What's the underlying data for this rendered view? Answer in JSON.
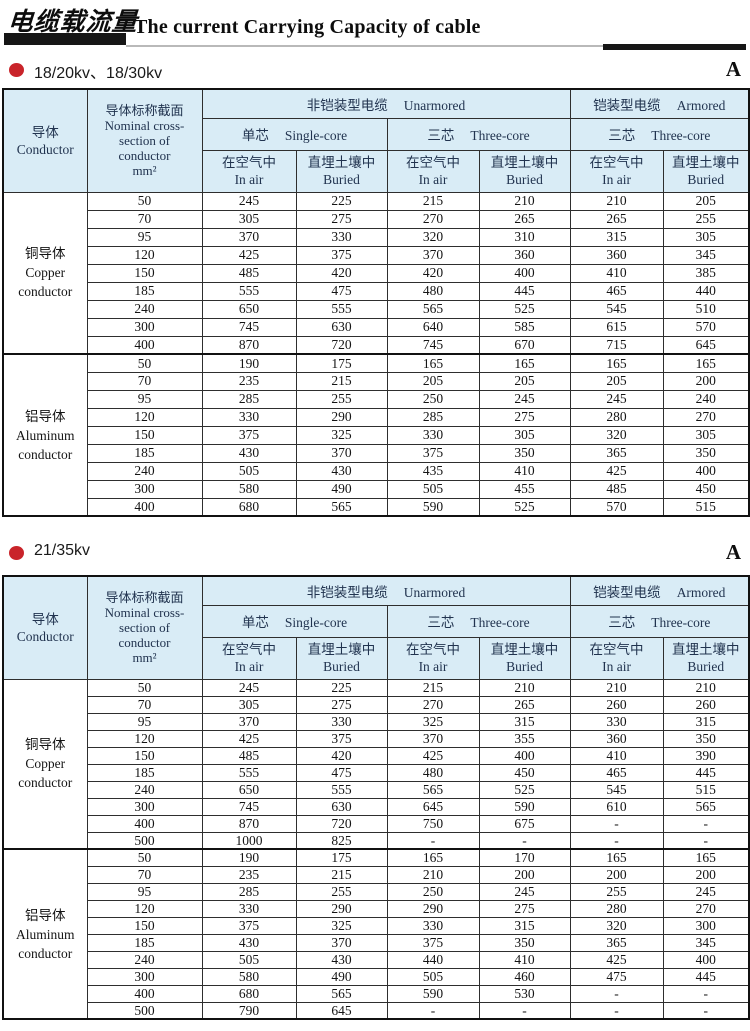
{
  "masthead": {
    "title_zh": "电缆载流量",
    "title_en": "The current Carrying Capacity of cable"
  },
  "table_header": {
    "conductor_zh": "导体",
    "conductor_en": "Conductor",
    "cross_section_lines": [
      "导体标称截面",
      "Nominal cross-",
      "section of",
      "conductor",
      "mm²"
    ],
    "unarmored_zh": "非铠装型电缆",
    "unarmored_en": "Unarmored",
    "armored_zh": "铠装型电缆",
    "armored_en": "Armored",
    "single_zh": "单芯",
    "single_en": "Single-core",
    "three_zh": "三芯",
    "three_en": "Three-core",
    "in_air_zh": "在空气中",
    "in_air_en": "In air",
    "buried_zh": "直埋土壤中",
    "buried_en": "Buried"
  },
  "colors": {
    "header_bg": "#d9ecf6",
    "accent_red": "#c9242a",
    "bar_black": "#161616",
    "rule_gray": "#b9b9b9"
  },
  "sections": [
    {
      "label": "18/20kv、18/30kv",
      "corner_letter": "A",
      "groups": [
        {
          "name_zh": "铜导体",
          "name_en": "Copper conductor",
          "rows": [
            [
              "50",
              "245",
              "225",
              "215",
              "210",
              "210",
              "205"
            ],
            [
              "70",
              "305",
              "275",
              "270",
              "265",
              "265",
              "255"
            ],
            [
              "95",
              "370",
              "330",
              "320",
              "310",
              "315",
              "305"
            ],
            [
              "120",
              "425",
              "375",
              "370",
              "360",
              "360",
              "345"
            ],
            [
              "150",
              "485",
              "420",
              "420",
              "400",
              "410",
              "385"
            ],
            [
              "185",
              "555",
              "475",
              "480",
              "445",
              "465",
              "440"
            ],
            [
              "240",
              "650",
              "555",
              "565",
              "525",
              "545",
              "510"
            ],
            [
              "300",
              "745",
              "630",
              "640",
              "585",
              "615",
              "570"
            ],
            [
              "400",
              "870",
              "720",
              "745",
              "670",
              "715",
              "645"
            ]
          ]
        },
        {
          "name_zh": "铝导体",
          "name_en": "Aluminum conductor",
          "rows": [
            [
              "50",
              "190",
              "175",
              "165",
              "165",
              "165",
              "165"
            ],
            [
              "70",
              "235",
              "215",
              "205",
              "205",
              "205",
              "200"
            ],
            [
              "95",
              "285",
              "255",
              "250",
              "245",
              "245",
              "240"
            ],
            [
              "120",
              "330",
              "290",
              "285",
              "275",
              "280",
              "270"
            ],
            [
              "150",
              "375",
              "325",
              "330",
              "305",
              "320",
              "305"
            ],
            [
              "185",
              "430",
              "370",
              "375",
              "350",
              "365",
              "350"
            ],
            [
              "240",
              "505",
              "430",
              "435",
              "410",
              "425",
              "400"
            ],
            [
              "300",
              "580",
              "490",
              "505",
              "455",
              "485",
              "450"
            ],
            [
              "400",
              "680",
              "565",
              "590",
              "525",
              "570",
              "515"
            ]
          ]
        }
      ]
    },
    {
      "label": "21/35kv",
      "corner_letter": "A",
      "groups": [
        {
          "name_zh": "铜导体",
          "name_en": "Copper conductor",
          "rows": [
            [
              "50",
              "245",
              "225",
              "215",
              "210",
              "210",
              "210"
            ],
            [
              "70",
              "305",
              "275",
              "270",
              "265",
              "260",
              "260"
            ],
            [
              "95",
              "370",
              "330",
              "325",
              "315",
              "330",
              "315"
            ],
            [
              "120",
              "425",
              "375",
              "370",
              "355",
              "360",
              "350"
            ],
            [
              "150",
              "485",
              "420",
              "425",
              "400",
              "410",
              "390"
            ],
            [
              "185",
              "555",
              "475",
              "480",
              "450",
              "465",
              "445"
            ],
            [
              "240",
              "650",
              "555",
              "565",
              "525",
              "545",
              "515"
            ],
            [
              "300",
              "745",
              "630",
              "645",
              "590",
              "610",
              "565"
            ],
            [
              "400",
              "870",
              "720",
              "750",
              "675",
              "-",
              "-"
            ],
            [
              "500",
              "1000",
              "825",
              "-",
              "-",
              "-",
              "-"
            ]
          ]
        },
        {
          "name_zh": "铝导体",
          "name_en": "Aluminum conductor",
          "rows": [
            [
              "50",
              "190",
              "175",
              "165",
              "170",
              "165",
              "165"
            ],
            [
              "70",
              "235",
              "215",
              "210",
              "200",
              "200",
              "200"
            ],
            [
              "95",
              "285",
              "255",
              "250",
              "245",
              "255",
              "245"
            ],
            [
              "120",
              "330",
              "290",
              "290",
              "275",
              "280",
              "270"
            ],
            [
              "150",
              "375",
              "325",
              "330",
              "315",
              "320",
              "300"
            ],
            [
              "185",
              "430",
              "370",
              "375",
              "350",
              "365",
              "345"
            ],
            [
              "240",
              "505",
              "430",
              "440",
              "410",
              "425",
              "400"
            ],
            [
              "300",
              "580",
              "490",
              "505",
              "460",
              "475",
              "445"
            ],
            [
              "400",
              "680",
              "565",
              "590",
              "530",
              "-",
              "-"
            ],
            [
              "500",
              "790",
              "645",
              "-",
              "-",
              "-",
              "-"
            ]
          ]
        }
      ]
    }
  ]
}
